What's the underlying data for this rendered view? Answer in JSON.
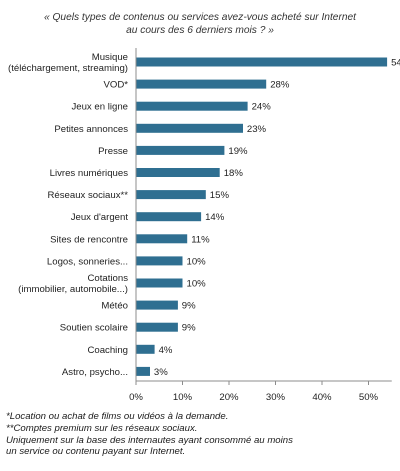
{
  "chart_data": {
    "type": "bar",
    "orientation": "horizontal",
    "title": {
      "line1": "« Quels types de contenus ou services avez-vous acheté sur Internet",
      "line2": "au cours des 6 derniers mois ? »"
    },
    "categories": [
      [
        "Musique",
        "(téléchargement, streaming)"
      ],
      [
        "VOD*"
      ],
      [
        "Jeux en ligne"
      ],
      [
        "Petites annonces"
      ],
      [
        "Presse"
      ],
      [
        "Livres numériques"
      ],
      [
        "Réseaux sociaux**"
      ],
      [
        "Jeux d'argent"
      ],
      [
        "Sites de rencontre"
      ],
      [
        "Logos, sonneries..."
      ],
      [
        "Cotations",
        "(immobilier, automobile...)"
      ],
      [
        "Météo"
      ],
      [
        "Soutien scolaire"
      ],
      [
        "Coaching"
      ],
      [
        "Astro, psycho..."
      ]
    ],
    "values": [
      54,
      28,
      24,
      23,
      19,
      18,
      15,
      14,
      11,
      10,
      10,
      9,
      9,
      4,
      3
    ],
    "value_suffix": "%",
    "x_ticks": [
      "0%",
      "10%",
      "20%",
      "30%",
      "40%",
      "50%"
    ],
    "xlim": [
      0,
      55
    ],
    "xlabel": "",
    "ylabel": "",
    "grid": false,
    "legend": "none",
    "colors": {
      "bar": "#2f6f91",
      "axis": "#8c8c8c",
      "text": "#1f1f1f"
    }
  },
  "footnotes": [
    "*Location ou achat de films ou vidéos à la demande.",
    "**Comptes premium sur les réseaux sociaux.",
    "Uniquement sur la base des internautes ayant consommé au moins",
    "un service ou contenu payant sur Internet."
  ]
}
